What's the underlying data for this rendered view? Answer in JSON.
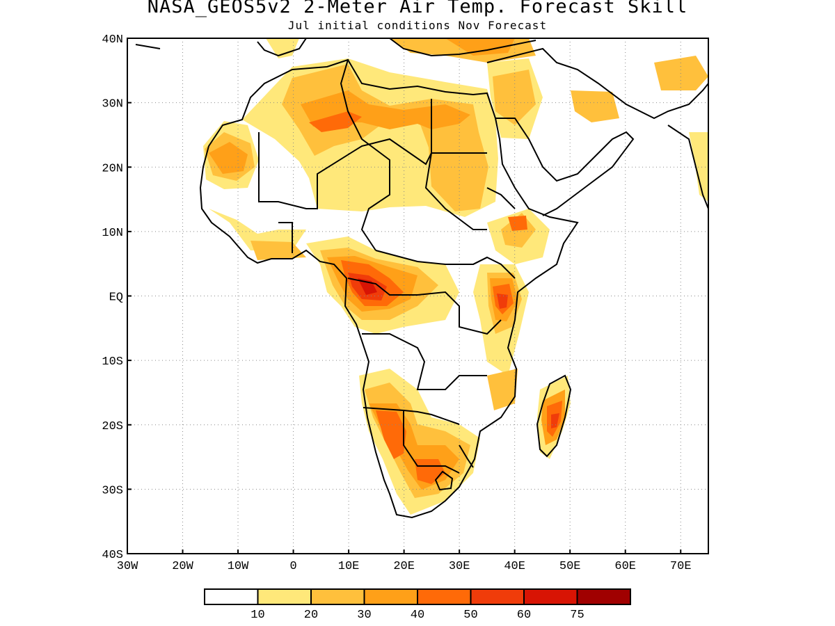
{
  "title": "NASA_GEOS5v2 2-Meter Air Temp. Forecast Skill",
  "subtitle": "Jul initial conditions  Nov Forecast",
  "lon_ticks": [
    "30W",
    "20W",
    "10W",
    "0",
    "10E",
    "20E",
    "30E",
    "40E",
    "50E",
    "60E",
    "70E"
  ],
  "lat_ticks": [
    "40N",
    "30N",
    "20N",
    "10N",
    "EQ",
    "10S",
    "20S",
    "30S",
    "40S"
  ],
  "colorbar": {
    "colors": [
      "#ffffff",
      "#ffe87a",
      "#ffc03c",
      "#ffa018",
      "#ff6a08",
      "#f03c0a",
      "#d81404",
      "#a00000"
    ],
    "labels": [
      "10",
      "20",
      "30",
      "40",
      "50",
      "60",
      "75"
    ]
  },
  "map": {
    "region": "Africa",
    "lon_range": [
      -30,
      75
    ],
    "lat_range": [
      -40,
      40
    ],
    "grid": true,
    "palette": {
      "c1": "#ffe87a",
      "c2": "#ffc03c",
      "c3": "#ffa018",
      "c4": "#ff6a08",
      "c5": "#f03c0a",
      "c6": "#d81404"
    }
  }
}
